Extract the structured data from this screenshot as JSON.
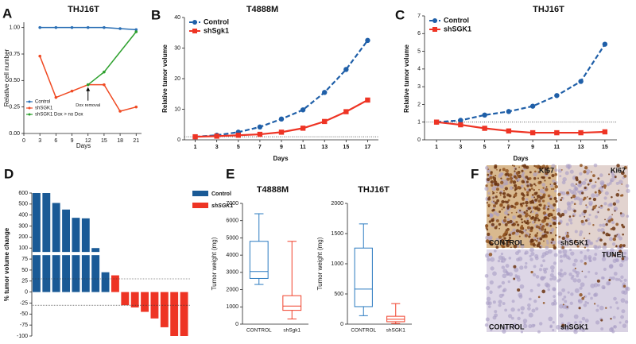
{
  "chart_data": [
    {
      "type": "line",
      "panel": "A",
      "title": "THJ16T",
      "x_label": "Days",
      "y_label": "Relative cell number",
      "xlim": [
        0,
        22
      ],
      "ylim": [
        0,
        1.05
      ],
      "xticks": [
        0,
        3,
        6,
        9,
        12,
        15,
        18,
        21
      ],
      "yticks": [
        {
          "value": 0,
          "label": "0.00"
        },
        {
          "value": 0.25,
          "label": "0.25"
        },
        {
          "value": 0.5,
          "label": "0.50"
        },
        {
          "value": 0.75,
          "label": "0.75"
        },
        {
          "value": 1,
          "label": "1.00"
        }
      ],
      "legend": "lower left",
      "series": [
        {
          "name": "Control",
          "color": "#2a6fb5",
          "marker": "circle",
          "x": [
            3,
            6,
            9,
            12,
            15,
            18,
            21
          ],
          "values": [
            1,
            1,
            1,
            1,
            1,
            0.99,
            0.98
          ]
        },
        {
          "name": "shSGK1",
          "color": "#f04a23",
          "marker": "circle",
          "x": [
            3,
            6,
            9,
            12,
            15,
            18,
            21
          ],
          "values": [
            0.73,
            0.34,
            0.4,
            0.46,
            0.46,
            0.21,
            0.25
          ]
        },
        {
          "name": "shSGK1 Dox > no Dox",
          "color": "#2ca02c",
          "marker": "circle",
          "x": [
            12,
            15,
            21
          ],
          "values": [
            0.46,
            0.58,
            0.96
          ]
        }
      ],
      "annotation": {
        "text": "Dox removal",
        "x": 12,
        "y": 0.46
      }
    },
    {
      "type": "line",
      "panel": "B",
      "title": "T4888M",
      "x_label": "Days",
      "y_label": "Relative tumor volume",
      "x": [
        1,
        3,
        5,
        7,
        9,
        11,
        13,
        15,
        17
      ],
      "xlim": [
        0,
        18
      ],
      "ylim": [
        0,
        40
      ],
      "xticks": [
        1,
        3,
        5,
        7,
        9,
        11,
        13,
        15,
        17
      ],
      "yticks": [
        0,
        10,
        20,
        30,
        40
      ],
      "reference_line": 1,
      "legend": "upper left",
      "series": [
        {
          "name": "Control",
          "color": "#1f5fa8",
          "marker": "circle",
          "dash": true,
          "values": [
            1,
            1.5,
            2.5,
            4.2,
            6.8,
            9.8,
            15.5,
            23,
            32.5
          ]
        },
        {
          "name": "shSgk1",
          "color": "#ee3424",
          "marker": "square",
          "values": [
            1,
            1.2,
            1.5,
            1.8,
            2.5,
            3.8,
            6,
            9.2,
            13
          ]
        }
      ]
    },
    {
      "type": "line",
      "panel": "C",
      "title": "THJ16T",
      "x_label": "Days",
      "y_label": "Relative tumor volume",
      "x": [
        1,
        3,
        5,
        7,
        9,
        11,
        13,
        15
      ],
      "xlim": [
        0,
        16
      ],
      "ylim": [
        0,
        7
      ],
      "xticks": [
        1,
        3,
        5,
        7,
        9,
        11,
        13,
        15
      ],
      "yticks": [
        0,
        1,
        2,
        3,
        4,
        5,
        6,
        7
      ],
      "reference_line": 1,
      "legend": "upper left",
      "series": [
        {
          "name": "Control",
          "color": "#1f5fa8",
          "marker": "circle",
          "dash": true,
          "values": [
            1,
            1.1,
            1.4,
            1.6,
            1.9,
            2.5,
            3.3,
            5.4
          ]
        },
        {
          "name": "shSGK1",
          "color": "#ee3424",
          "marker": "square",
          "values": [
            1,
            0.85,
            0.65,
            0.5,
            0.4,
            0.4,
            0.4,
            0.45
          ]
        }
      ]
    },
    {
      "type": "bar",
      "panel": "D",
      "y_label": "% tumor volume change",
      "ylim": [
        -100,
        600
      ],
      "yticks": [
        600,
        500,
        400,
        300,
        200,
        100,
        75,
        50,
        25,
        0,
        -25,
        -50,
        -75,
        -100
      ],
      "axis_break": true,
      "reference_lines": [
        30,
        -30
      ],
      "legend": "right",
      "series": [
        {
          "name": "Control",
          "color": "#1a5a96",
          "values": [
            600,
            600,
            510,
            450,
            375,
            370,
            100,
            45
          ]
        },
        {
          "name": "shSGK1",
          "color": "#ee3424",
          "values": [
            38,
            -30,
            -35,
            -45,
            -60,
            -80,
            -100,
            -100
          ]
        }
      ]
    },
    {
      "type": "box",
      "panel": "E",
      "title": "T4888M",
      "y_label": "Tumor weight (mg)",
      "ylim": [
        0,
        7000
      ],
      "yticks": [
        0,
        1000,
        2000,
        3000,
        4000,
        5000,
        6000,
        7000
      ],
      "series": [
        {
          "name": "CONTROL",
          "color": "#2a7ac0",
          "min": 2300,
          "q1": 2650,
          "median": 3050,
          "q3": 4800,
          "max": 6400
        },
        {
          "name": "shSgk1",
          "color": "#f0402a",
          "min": 300,
          "q1": 800,
          "median": 1050,
          "q3": 1650,
          "max": 4800
        }
      ]
    },
    {
      "type": "box",
      "title": "THJ16T",
      "y_label": "Tumor weight (mg)",
      "ylim": [
        0,
        2000
      ],
      "yticks": [
        0,
        500,
        1000,
        1500,
        2000
      ],
      "series": [
        {
          "name": "CONTROL",
          "color": "#2a7ac0",
          "min": 140,
          "q1": 290,
          "median": 580,
          "q3": 1260,
          "max": 1660
        },
        {
          "name": "shSGK1",
          "color": "#f0402a",
          "min": 10,
          "q1": 40,
          "median": 80,
          "q3": 130,
          "max": 340
        }
      ]
    }
  ],
  "images": {
    "panel": "F",
    "tiles": [
      {
        "stain": "Ki67",
        "group": "CONTROL"
      },
      {
        "stain": "Ki67",
        "group": "shSGK1"
      },
      {
        "group": "CONTROL"
      },
      {
        "stain": "TUNEL",
        "group": "shSGK1"
      }
    ]
  }
}
